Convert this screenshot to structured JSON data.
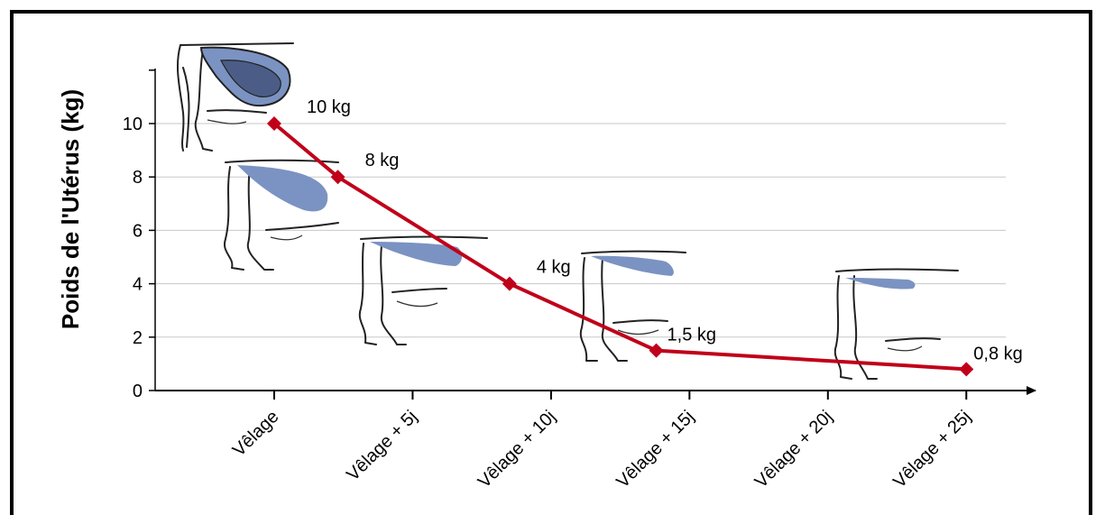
{
  "chart_data": {
    "type": "line",
    "ylabel": "Poids de l'Utérus (kg)",
    "xlabel": "",
    "ylim": [
      0,
      12
    ],
    "yticks": [
      0,
      2,
      4,
      6,
      8,
      10
    ],
    "grid": true,
    "categories": [
      "Vêlage",
      "Vêlage + 5j",
      "Vêlage + 10j",
      "Vêlage + 15j",
      "Vêlage + 20j",
      "Vêlage + 25j"
    ],
    "xlim": [
      -4.3,
      27.5
    ],
    "points": [
      {
        "x": 0,
        "y": 10,
        "label": "10 kg"
      },
      {
        "x": 2.3,
        "y": 8,
        "label": "8 kg"
      },
      {
        "x": 8.5,
        "y": 4,
        "label": "4 kg"
      },
      {
        "x": 13.8,
        "y": 1.5,
        "label": "1,5 kg"
      },
      {
        "x": 25,
        "y": 0.8,
        "label": "0,8 kg"
      }
    ],
    "colors": {
      "line": "#c0001a",
      "uterus": "#7b93c2",
      "uterus_dark": "#4b5d86",
      "grid": "#c8c8c8"
    }
  }
}
